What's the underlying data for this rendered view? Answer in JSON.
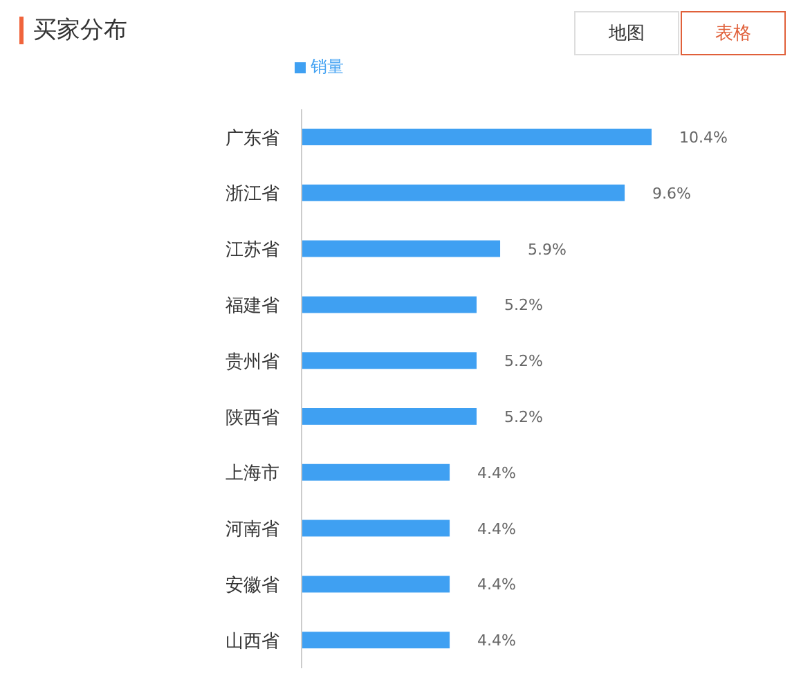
{
  "chart_data": {
    "type": "bar",
    "orientation": "horizontal",
    "title": "买家分布",
    "annotations": [
      "地图",
      "表格"
    ],
    "categories": [
      "广东省",
      "浙江省",
      "江苏省",
      "福建省",
      "贵州省",
      "陕西省",
      "上海市",
      "河南省",
      "安徽省",
      "山西省"
    ],
    "series": [
      {
        "name": "销量",
        "color": "#3fa0f2",
        "values": [
          10.4,
          9.6,
          5.9,
          5.2,
          5.2,
          5.2,
          4.4,
          4.4,
          4.4,
          4.4
        ],
        "value_labels": [
          "10.4%",
          "9.6%",
          "5.9%",
          "5.2%",
          "5.2%",
          "5.2%",
          "4.4%",
          "4.4%",
          "4.4%",
          "4.4%"
        ]
      }
    ],
    "legend": "top",
    "grid": false
  }
}
